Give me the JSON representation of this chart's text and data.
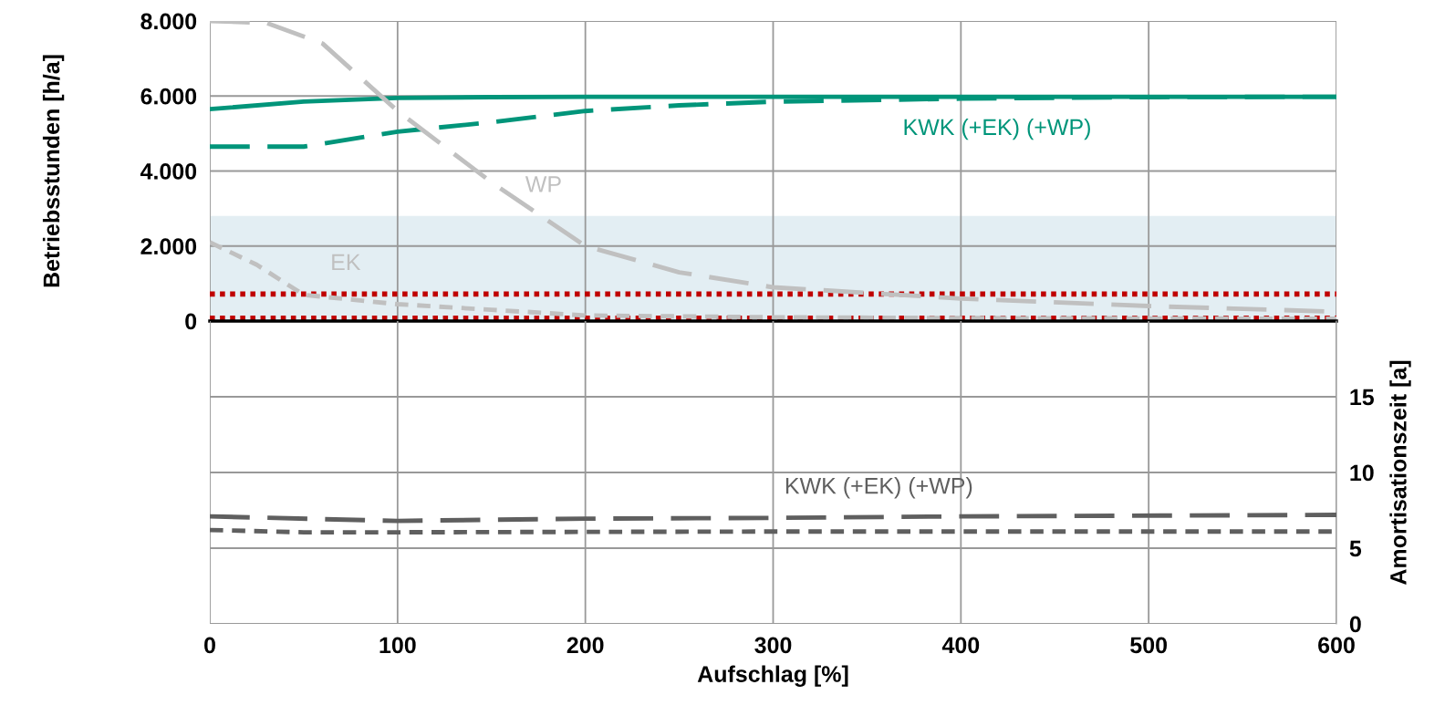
{
  "chart_data": [
    {
      "type": "line",
      "ylabel": "Betriebsstunden [h/a]",
      "xlim": [
        0,
        600
      ],
      "xticks": [
        0,
        100,
        200,
        300,
        400,
        500,
        600
      ],
      "ylim": [
        0,
        8000
      ],
      "yticks": [
        {
          "value": 0,
          "label": "0"
        },
        {
          "value": 2000,
          "label": "2.000"
        },
        {
          "value": 4000,
          "label": "4.000"
        },
        {
          "value": 6000,
          "label": "6.000"
        },
        {
          "value": 8000,
          "label": "8.000"
        }
      ],
      "grid": true,
      "tick_labels": "y",
      "legend": false,
      "marker": "none",
      "series": [
        {
          "name": "KWK (+EK) (+WP)",
          "color": "#00957a",
          "line_style": "solid",
          "x": [
            0,
            50,
            100,
            150,
            200,
            300,
            400,
            500,
            600
          ],
          "values": [
            5650,
            5850,
            5950,
            5970,
            5980,
            5980,
            5980,
            5980,
            5980
          ]
        },
        {
          "color": "#00957a",
          "line_style": "dashed",
          "x": [
            0,
            50,
            100,
            150,
            200,
            250,
            300,
            400,
            500,
            600
          ],
          "values": [
            4650,
            4650,
            5050,
            5300,
            5600,
            5750,
            5850,
            5930,
            5970,
            5980
          ]
        },
        {
          "name": "WP",
          "color": "#c0c0c0",
          "line_style": "dashed",
          "x": [
            0,
            30,
            60,
            100,
            150,
            200,
            250,
            300,
            400,
            500,
            600
          ],
          "values": [
            8000,
            7950,
            7400,
            5600,
            3700,
            2000,
            1300,
            900,
            600,
            400,
            250
          ]
        },
        {
          "name": "EK",
          "color": "#c0c0c0",
          "line_style": "dotted",
          "x": [
            0,
            25,
            50,
            100,
            150,
            200,
            300,
            400,
            600
          ],
          "values": [
            2100,
            1500,
            700,
            450,
            300,
            150,
            100,
            80,
            60
          ]
        }
      ],
      "bands": [
        {
          "axis": "y",
          "from": 0,
          "to": 2800,
          "color": "#e3eef3"
        }
      ],
      "ref_lines": [
        {
          "axis": "y",
          "value": 720,
          "color": "#c00000",
          "line_style": "dotted"
        },
        {
          "axis": "y",
          "value": 80,
          "color": "#c00000",
          "line_style": "dotted"
        }
      ]
    },
    {
      "type": "line",
      "xlabel": "Aufschlag [%]",
      "ylabel": "Amortisationszeit [a]",
      "xlim": [
        0,
        600
      ],
      "xticks": [
        0,
        100,
        200,
        300,
        400,
        500,
        600
      ],
      "ylim": [
        0,
        20
      ],
      "yticks": [
        0,
        5,
        10,
        15
      ],
      "grid": true,
      "legend": false,
      "marker": "none",
      "series": [
        {
          "name": "KWK (+EK) (+WP)",
          "color": "#5f5f5f",
          "line_style": "dashed",
          "x": [
            0,
            100,
            200,
            300,
            400,
            600
          ],
          "values": [
            7.1,
            6.8,
            6.95,
            7.0,
            7.1,
            7.2
          ]
        },
        {
          "color": "#5f5f5f",
          "line_style": "dotted",
          "x": [
            0,
            50,
            100,
            300,
            600
          ],
          "values": [
            6.2,
            6.05,
            6.05,
            6.1,
            6.1
          ]
        }
      ]
    }
  ]
}
